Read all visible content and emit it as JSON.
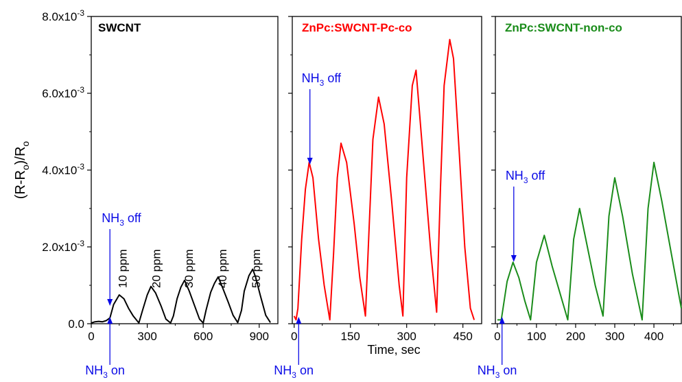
{
  "chart_data": [
    {
      "type": "line",
      "title": "SWCNT",
      "color": "#000000",
      "ylabel": "(R-Ro)/Ro",
      "ylim": [
        0,
        0.008
      ],
      "xlim": [
        0,
        1000
      ],
      "xticks": [
        0,
        300,
        600,
        900
      ],
      "yticks": [
        0.0,
        0.002,
        0.004,
        0.006,
        0.008
      ],
      "ytick_labels": [
        "0.0",
        "2.0x10-3",
        "4.0x10-3",
        "6.0x10-3",
        "8.0x10-3"
      ],
      "series": [
        {
          "x": [
            0,
            20,
            40,
            60,
            80,
            100,
            120,
            150,
            175,
            200,
            225,
            255,
            275,
            300,
            320,
            345,
            375,
            400,
            425,
            440,
            460,
            480,
            500,
            525,
            555,
            580,
            600,
            615,
            640,
            660,
            680,
            705,
            735,
            760,
            785,
            805,
            820,
            845,
            865,
            880,
            905,
            935,
            960
          ],
          "y": [
            2e-05,
            5e-05,
            6e-05,
            5e-05,
            8e-05,
            0.00015,
            0.0005,
            0.00075,
            0.00065,
            0.0004,
            0.0002,
            2e-05,
            0.00035,
            0.00075,
            0.00097,
            0.0008,
            0.00045,
            0.00012,
            2e-05,
            0.0002,
            0.00065,
            0.00095,
            0.00113,
            0.00085,
            0.00045,
            0.00012,
            2e-05,
            0.00035,
            0.00082,
            0.00105,
            0.00122,
            0.00092,
            0.00055,
            0.00022,
            3e-05,
            0.00035,
            0.00085,
            0.00125,
            0.00142,
            0.00122,
            0.00075,
            0.00022,
            3e-05
          ]
        }
      ],
      "annotations": {
        "nh3_off": {
          "label": "NH3 off",
          "x": 100
        },
        "nh3_on": {
          "label": "NH3 on",
          "x": 100
        },
        "ppm_labels": [
          {
            "text": "10 ppm",
            "x": 160
          },
          {
            "text": "20 ppm",
            "x": 340
          },
          {
            "text": "30 ppm",
            "x": 515
          },
          {
            "text": "40 ppm",
            "x": 695
          },
          {
            "text": "50 ppm",
            "x": 875
          }
        ]
      }
    },
    {
      "type": "line",
      "title": "ZnPc:SWCNT-Pc-co",
      "color": "#ff0000",
      "xlabel": "Time, sec",
      "ylim": [
        0,
        0.008
      ],
      "xlim": [
        -5,
        500
      ],
      "xticks": [
        0,
        150,
        300,
        450
      ],
      "series": [
        {
          "x": [
            0,
            5,
            10,
            20,
            30,
            40,
            50,
            65,
            80,
            95,
            105,
            115,
            125,
            140,
            160,
            175,
            190,
            200,
            210,
            225,
            240,
            260,
            280,
            290,
            300,
            315,
            325,
            345,
            365,
            380,
            390,
            400,
            415,
            425,
            440,
            455,
            470,
            480
          ],
          "y": [
            0.0002,
            0.0001,
            0.0004,
            0.0022,
            0.0035,
            0.0042,
            0.0038,
            0.0022,
            0.001,
            0.0001,
            0.0018,
            0.0038,
            0.0047,
            0.0042,
            0.0026,
            0.0012,
            0.0002,
            0.0025,
            0.0048,
            0.0059,
            0.0052,
            0.0032,
            0.001,
            0.0002,
            0.0038,
            0.0062,
            0.0066,
            0.0042,
            0.0018,
            0.0003,
            0.0035,
            0.0062,
            0.0074,
            0.0069,
            0.0045,
            0.002,
            0.0004,
            0.0001
          ]
        }
      ],
      "annotations": {
        "nh3_off": {
          "label": "NH3 off",
          "x": 42
        },
        "nh3_on": {
          "label": "NH3 on",
          "x": 12
        }
      }
    },
    {
      "type": "line",
      "title": "ZnPc:SWCNT-non-co",
      "color": "#1a8c1a",
      "ylim": [
        0,
        0.008
      ],
      "xlim": [
        -5,
        470
      ],
      "xticks": [
        0,
        100,
        200,
        300,
        400
      ],
      "series": [
        {
          "x": [
            0,
            10,
            25,
            40,
            55,
            70,
            85,
            100,
            120,
            140,
            160,
            180,
            195,
            210,
            230,
            250,
            270,
            285,
            300,
            320,
            345,
            370,
            385,
            400,
            420,
            445,
            470
          ],
          "y": [
            0.0001,
            0.0001,
            0.0011,
            0.0016,
            0.0012,
            0.0006,
            0.0001,
            0.0016,
            0.0023,
            0.0015,
            0.0008,
            0.0001,
            0.0022,
            0.003,
            0.002,
            0.001,
            0.0002,
            0.0028,
            0.0038,
            0.0028,
            0.0013,
            0.0001,
            0.003,
            0.0042,
            0.0032,
            0.0018,
            0.0004
          ]
        }
      ],
      "annotations": {
        "nh3_off": {
          "label": "NH3 off",
          "x": 42
        },
        "nh3_on": {
          "label": "NH3 on",
          "x": 12
        }
      }
    }
  ]
}
